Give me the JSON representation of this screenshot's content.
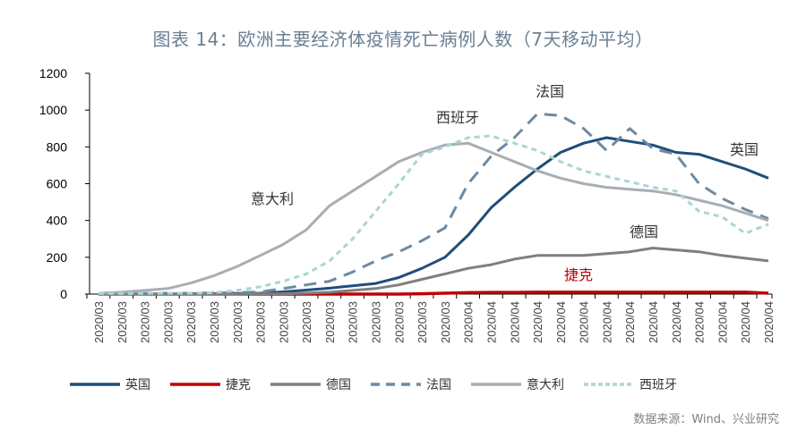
{
  "title": "图表 14：欧洲主要经济体疫情死亡病例人数（7天移动平均）",
  "source": "数据来源：Wind、兴业研究",
  "chart_data": {
    "type": "line",
    "title": "图表 14：欧洲主要经济体疫情死亡病例人数（7天移动平均）",
    "xlabel": "",
    "ylabel": "",
    "ylim": [
      0,
      1200
    ],
    "yticks": [
      0,
      200,
      400,
      600,
      800,
      1000,
      1200
    ],
    "grid": false,
    "legend_position": "bottom",
    "categories": [
      "2020/03",
      "2020/03",
      "2020/03",
      "2020/03",
      "2020/03",
      "2020/03",
      "2020/03",
      "2020/03",
      "2020/03",
      "2020/03",
      "2020/03",
      "2020/03",
      "2020/03",
      "2020/03",
      "2020/03",
      "2020/03",
      "2020/04",
      "2020/04",
      "2020/04",
      "2020/04",
      "2020/04",
      "2020/04",
      "2020/04",
      "2020/04",
      "2020/04",
      "2020/04",
      "2020/04",
      "2020/04",
      "2020/04",
      "2020/04"
    ],
    "series": [
      {
        "name": "英国",
        "color": "#1f4e79",
        "dash": false,
        "label_pos": [
          815,
          173
        ],
        "values": [
          0,
          0,
          0,
          0,
          1,
          2,
          3,
          5,
          12,
          22,
          32,
          45,
          58,
          90,
          140,
          200,
          320,
          470,
          580,
          680,
          770,
          820,
          850,
          830,
          810,
          770,
          760,
          720,
          680,
          630
        ]
      },
      {
        "name": "捷克",
        "color": "#c00000",
        "dash": false,
        "label_pos": [
          630,
          313
        ],
        "values": [
          0,
          0,
          0,
          0,
          0,
          0,
          0,
          0,
          0,
          0,
          0,
          0,
          0,
          0,
          2,
          5,
          8,
          9,
          9,
          10,
          10,
          10,
          10,
          10,
          10,
          10,
          10,
          10,
          10,
          5
        ]
      },
      {
        "name": "德国",
        "color": "#7f7f7f",
        "dash": false,
        "label_pos": [
          703,
          265
        ],
        "values": [
          0,
          0,
          0,
          0,
          0,
          0,
          0,
          1,
          2,
          5,
          10,
          20,
          30,
          50,
          80,
          110,
          140,
          160,
          190,
          210,
          210,
          210,
          220,
          230,
          250,
          240,
          230,
          210,
          195,
          180
        ]
      },
      {
        "name": "法国",
        "color": "#6d8aa3",
        "dash": true,
        "label_pos": [
          598,
          108
        ],
        "values": [
          3,
          3,
          4,
          5,
          5,
          6,
          8,
          12,
          30,
          50,
          70,
          120,
          180,
          230,
          290,
          360,
          600,
          750,
          850,
          980,
          970,
          900,
          780,
          900,
          790,
          760,
          600,
          520,
          460,
          410
        ]
      },
      {
        "name": "意大利",
        "color": "#a7aeb5",
        "dash": false,
        "label_pos": [
          280,
          228
        ],
        "values": [
          5,
          10,
          20,
          30,
          60,
          100,
          150,
          210,
          270,
          350,
          480,
          560,
          640,
          720,
          770,
          810,
          820,
          770,
          720,
          670,
          630,
          600,
          580,
          570,
          560,
          540,
          510,
          480,
          440,
          400
        ]
      },
      {
        "name": "西班牙",
        "color": "#a9d6d1",
        "dash": true,
        "label_pos": [
          487,
          137
        ],
        "values": [
          3,
          3,
          4,
          5,
          5,
          8,
          20,
          40,
          70,
          110,
          180,
          300,
          450,
          600,
          760,
          800,
          850,
          860,
          820,
          780,
          720,
          670,
          640,
          610,
          580,
          560,
          450,
          420,
          330,
          380
        ]
      }
    ]
  }
}
